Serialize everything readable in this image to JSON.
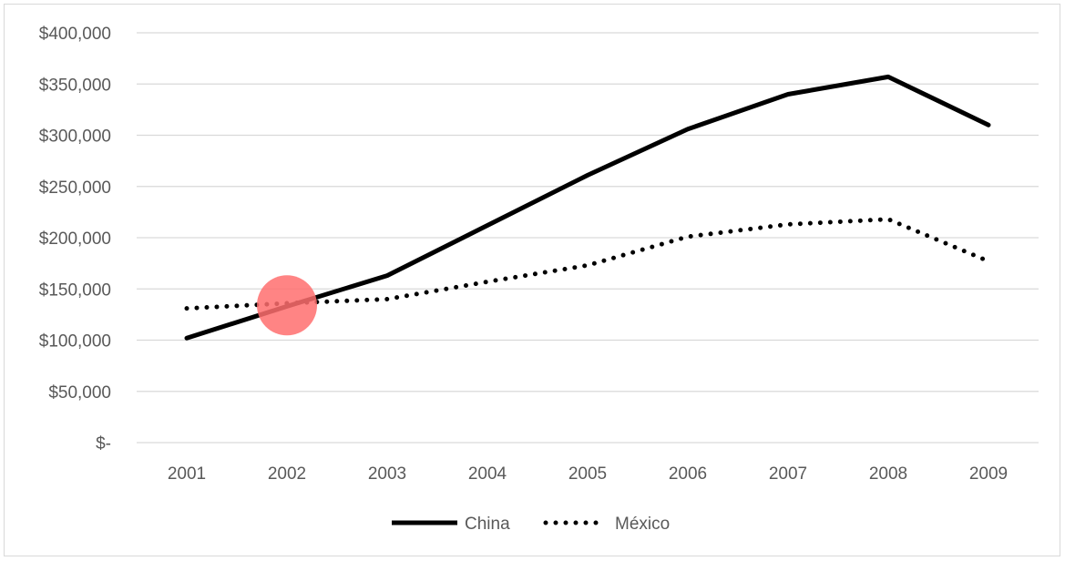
{
  "chart_data": {
    "type": "line",
    "categories": [
      "2001",
      "2002",
      "2003",
      "2004",
      "2005",
      "2006",
      "2007",
      "2008",
      "2009"
    ],
    "series": [
      {
        "name": "China",
        "style": "solid",
        "color": "#000000",
        "values": [
          102000,
          133000,
          163000,
          212000,
          261000,
          306000,
          340000,
          357000,
          310000
        ]
      },
      {
        "name": "México",
        "style": "dotted",
        "color": "#000000",
        "values": [
          131000,
          136000,
          140000,
          157000,
          173000,
          201000,
          213000,
          218000,
          177000
        ]
      }
    ],
    "ylim": [
      0,
      400000
    ],
    "yticks": [
      0,
      50000,
      100000,
      150000,
      200000,
      250000,
      300000,
      350000,
      400000
    ],
    "ytick_labels": [
      "$-",
      "$50,000",
      "$100,000",
      "$150,000",
      "$200,000",
      "$250,000",
      "$300,000",
      "$350,000",
      "$400,000"
    ],
    "xlabel": "",
    "ylabel": "",
    "title": "",
    "grid": true,
    "legend_position": "bottom",
    "highlight": {
      "category": "2002",
      "value": 134000,
      "color": "#ff6f6f"
    }
  }
}
